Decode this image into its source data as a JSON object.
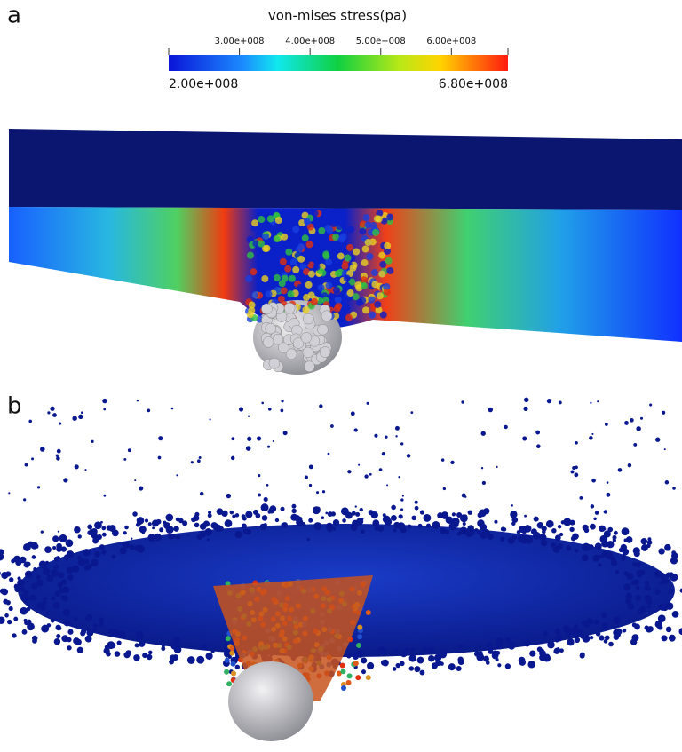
{
  "panels": [
    {
      "label": "a"
    },
    {
      "label": "b"
    }
  ],
  "colorbar": {
    "title": "von-mises stress(pa)",
    "range": [
      {
        "value": 200000000,
        "label": "2.00e+008"
      },
      {
        "value": 680000000,
        "label": "6.80e+008"
      }
    ],
    "ticks": [
      {
        "value": 300000000,
        "label": "3.00e+008"
      },
      {
        "value": 400000000,
        "label": "4.00e+008"
      },
      {
        "value": 500000000,
        "label": "5.00e+008"
      },
      {
        "value": 600000000,
        "label": "6.00e+008"
      }
    ]
  }
}
